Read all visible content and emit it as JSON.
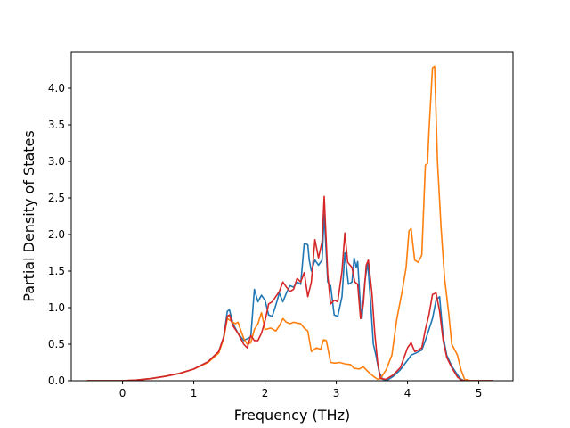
{
  "chart_data": {
    "type": "line",
    "title": "",
    "xlabel": "Frequency (THz)",
    "ylabel": "Partial Density of States",
    "xlim": [
      -0.72,
      5.48
    ],
    "ylim": [
      0.0,
      4.5
    ],
    "xticks": [
      0,
      1,
      2,
      3,
      4,
      5
    ],
    "yticks": [
      0.0,
      0.5,
      1.0,
      1.5,
      2.0,
      2.5,
      3.0,
      3.5,
      4.0
    ],
    "ytick_labels": [
      "0.0",
      "0.5",
      "1.0",
      "1.5",
      "2.0",
      "2.5",
      "3.0",
      "3.5",
      "4.0"
    ],
    "grid": false,
    "legend": "none",
    "series": [
      {
        "color": "#1f77b4",
        "points": [
          [
            -0.5,
            0
          ],
          [
            0,
            0
          ],
          [
            0.2,
            0.01
          ],
          [
            0.4,
            0.03
          ],
          [
            0.6,
            0.06
          ],
          [
            0.8,
            0.1
          ],
          [
            1.0,
            0.16
          ],
          [
            1.2,
            0.26
          ],
          [
            1.35,
            0.4
          ],
          [
            1.42,
            0.6
          ],
          [
            1.47,
            0.95
          ],
          [
            1.5,
            0.97
          ],
          [
            1.55,
            0.78
          ],
          [
            1.62,
            0.65
          ],
          [
            1.7,
            0.55
          ],
          [
            1.8,
            0.6
          ],
          [
            1.85,
            1.25
          ],
          [
            1.9,
            1.08
          ],
          [
            1.95,
            1.17
          ],
          [
            2.0,
            1.1
          ],
          [
            2.05,
            0.9
          ],
          [
            2.1,
            0.88
          ],
          [
            2.15,
            1.03
          ],
          [
            2.2,
            1.2
          ],
          [
            2.25,
            1.08
          ],
          [
            2.3,
            1.2
          ],
          [
            2.35,
            1.3
          ],
          [
            2.4,
            1.28
          ],
          [
            2.45,
            1.35
          ],
          [
            2.5,
            1.32
          ],
          [
            2.55,
            1.88
          ],
          [
            2.6,
            1.86
          ],
          [
            2.62,
            1.65
          ],
          [
            2.65,
            1.5
          ],
          [
            2.7,
            1.65
          ],
          [
            2.75,
            1.58
          ],
          [
            2.8,
            1.65
          ],
          [
            2.83,
            2.28
          ],
          [
            2.88,
            1.35
          ],
          [
            2.92,
            1.3
          ],
          [
            2.97,
            0.9
          ],
          [
            3.02,
            0.88
          ],
          [
            3.08,
            1.15
          ],
          [
            3.12,
            1.75
          ],
          [
            3.17,
            1.32
          ],
          [
            3.22,
            1.35
          ],
          [
            3.25,
            1.68
          ],
          [
            3.28,
            1.55
          ],
          [
            3.3,
            1.63
          ],
          [
            3.34,
            1.0
          ],
          [
            3.36,
            0.85
          ],
          [
            3.4,
            1.35
          ],
          [
            3.44,
            1.62
          ],
          [
            3.48,
            1.1
          ],
          [
            3.52,
            0.5
          ],
          [
            3.56,
            0.33
          ],
          [
            3.6,
            0.12
          ],
          [
            3.65,
            0.02
          ],
          [
            3.72,
            0.01
          ],
          [
            3.8,
            0.06
          ],
          [
            3.9,
            0.15
          ],
          [
            4.0,
            0.28
          ],
          [
            4.05,
            0.35
          ],
          [
            4.12,
            0.38
          ],
          [
            4.2,
            0.42
          ],
          [
            4.25,
            0.55
          ],
          [
            4.3,
            0.7
          ],
          [
            4.35,
            0.85
          ],
          [
            4.4,
            1.1
          ],
          [
            4.45,
            1.15
          ],
          [
            4.5,
            0.6
          ],
          [
            4.55,
            0.35
          ],
          [
            4.62,
            0.2
          ],
          [
            4.7,
            0.08
          ],
          [
            4.75,
            0.02
          ],
          [
            4.8,
            0
          ],
          [
            5.2,
            0
          ]
        ]
      },
      {
        "color": "#ff7f0e",
        "points": [
          [
            -0.5,
            0
          ],
          [
            0,
            0
          ],
          [
            0.2,
            0.01
          ],
          [
            0.4,
            0.03
          ],
          [
            0.6,
            0.06
          ],
          [
            0.8,
            0.1
          ],
          [
            1.0,
            0.16
          ],
          [
            1.2,
            0.25
          ],
          [
            1.35,
            0.38
          ],
          [
            1.42,
            0.58
          ],
          [
            1.47,
            0.85
          ],
          [
            1.52,
            0.82
          ],
          [
            1.58,
            0.78
          ],
          [
            1.62,
            0.8
          ],
          [
            1.7,
            0.58
          ],
          [
            1.75,
            0.5
          ],
          [
            1.8,
            0.52
          ],
          [
            1.85,
            0.7
          ],
          [
            1.9,
            0.78
          ],
          [
            1.95,
            0.93
          ],
          [
            2.0,
            0.7
          ],
          [
            2.08,
            0.72
          ],
          [
            2.15,
            0.68
          ],
          [
            2.2,
            0.75
          ],
          [
            2.25,
            0.85
          ],
          [
            2.3,
            0.8
          ],
          [
            2.35,
            0.78
          ],
          [
            2.4,
            0.8
          ],
          [
            2.45,
            0.79
          ],
          [
            2.5,
            0.78
          ],
          [
            2.55,
            0.72
          ],
          [
            2.6,
            0.68
          ],
          [
            2.65,
            0.4
          ],
          [
            2.72,
            0.45
          ],
          [
            2.78,
            0.43
          ],
          [
            2.82,
            0.56
          ],
          [
            2.86,
            0.55
          ],
          [
            2.92,
            0.25
          ],
          [
            2.98,
            0.24
          ],
          [
            3.05,
            0.25
          ],
          [
            3.12,
            0.23
          ],
          [
            3.2,
            0.22
          ],
          [
            3.25,
            0.17
          ],
          [
            3.32,
            0.16
          ],
          [
            3.38,
            0.19
          ],
          [
            3.45,
            0.12
          ],
          [
            3.52,
            0.06
          ],
          [
            3.58,
            0.02
          ],
          [
            3.62,
            0.03
          ],
          [
            3.7,
            0.15
          ],
          [
            3.78,
            0.35
          ],
          [
            3.85,
            0.85
          ],
          [
            3.92,
            1.2
          ],
          [
            3.98,
            1.55
          ],
          [
            4.02,
            2.05
          ],
          [
            4.05,
            2.08
          ],
          [
            4.1,
            1.65
          ],
          [
            4.15,
            1.62
          ],
          [
            4.2,
            1.72
          ],
          [
            4.25,
            2.95
          ],
          [
            4.28,
            2.97
          ],
          [
            4.3,
            3.4
          ],
          [
            4.35,
            4.28
          ],
          [
            4.38,
            4.3
          ],
          [
            4.42,
            3.0
          ],
          [
            4.47,
            2.1
          ],
          [
            4.52,
            1.4
          ],
          [
            4.58,
            0.9
          ],
          [
            4.62,
            0.5
          ],
          [
            4.7,
            0.35
          ],
          [
            4.75,
            0.15
          ],
          [
            4.8,
            0.02
          ],
          [
            4.9,
            0
          ],
          [
            5.2,
            0
          ]
        ]
      },
      {
        "color": "#d62728",
        "points": [
          [
            -0.5,
            0
          ],
          [
            0,
            0
          ],
          [
            0.2,
            0.01
          ],
          [
            0.4,
            0.03
          ],
          [
            0.6,
            0.06
          ],
          [
            0.8,
            0.1
          ],
          [
            1.0,
            0.16
          ],
          [
            1.2,
            0.26
          ],
          [
            1.35,
            0.4
          ],
          [
            1.42,
            0.6
          ],
          [
            1.47,
            0.88
          ],
          [
            1.5,
            0.9
          ],
          [
            1.55,
            0.75
          ],
          [
            1.62,
            0.65
          ],
          [
            1.7,
            0.5
          ],
          [
            1.75,
            0.45
          ],
          [
            1.8,
            0.62
          ],
          [
            1.85,
            0.55
          ],
          [
            1.9,
            0.55
          ],
          [
            1.95,
            0.65
          ],
          [
            2.0,
            0.82
          ],
          [
            2.05,
            1.05
          ],
          [
            2.1,
            1.08
          ],
          [
            2.15,
            1.15
          ],
          [
            2.2,
            1.22
          ],
          [
            2.25,
            1.35
          ],
          [
            2.3,
            1.28
          ],
          [
            2.35,
            1.22
          ],
          [
            2.4,
            1.25
          ],
          [
            2.45,
            1.4
          ],
          [
            2.5,
            1.35
          ],
          [
            2.55,
            1.48
          ],
          [
            2.6,
            1.15
          ],
          [
            2.65,
            1.35
          ],
          [
            2.7,
            1.93
          ],
          [
            2.75,
            1.68
          ],
          [
            2.8,
            1.9
          ],
          [
            2.83,
            2.52
          ],
          [
            2.88,
            1.45
          ],
          [
            2.92,
            1.05
          ],
          [
            2.97,
            1.1
          ],
          [
            3.02,
            1.08
          ],
          [
            3.08,
            1.5
          ],
          [
            3.12,
            2.02
          ],
          [
            3.16,
            1.62
          ],
          [
            3.22,
            1.55
          ],
          [
            3.26,
            1.35
          ],
          [
            3.3,
            1.32
          ],
          [
            3.34,
            0.85
          ],
          [
            3.38,
            1.05
          ],
          [
            3.42,
            1.58
          ],
          [
            3.45,
            1.65
          ],
          [
            3.5,
            1.2
          ],
          [
            3.54,
            0.65
          ],
          [
            3.58,
            0.25
          ],
          [
            3.62,
            0.03
          ],
          [
            3.7,
            0.02
          ],
          [
            3.8,
            0.08
          ],
          [
            3.9,
            0.18
          ],
          [
            4.0,
            0.45
          ],
          [
            4.05,
            0.52
          ],
          [
            4.1,
            0.4
          ],
          [
            4.15,
            0.42
          ],
          [
            4.2,
            0.45
          ],
          [
            4.25,
            0.7
          ],
          [
            4.3,
            0.9
          ],
          [
            4.35,
            1.18
          ],
          [
            4.4,
            1.2
          ],
          [
            4.45,
            0.95
          ],
          [
            4.5,
            0.55
          ],
          [
            4.55,
            0.32
          ],
          [
            4.62,
            0.18
          ],
          [
            4.7,
            0.05
          ],
          [
            4.75,
            0.01
          ],
          [
            4.8,
            0
          ],
          [
            5.2,
            0
          ]
        ]
      }
    ]
  }
}
